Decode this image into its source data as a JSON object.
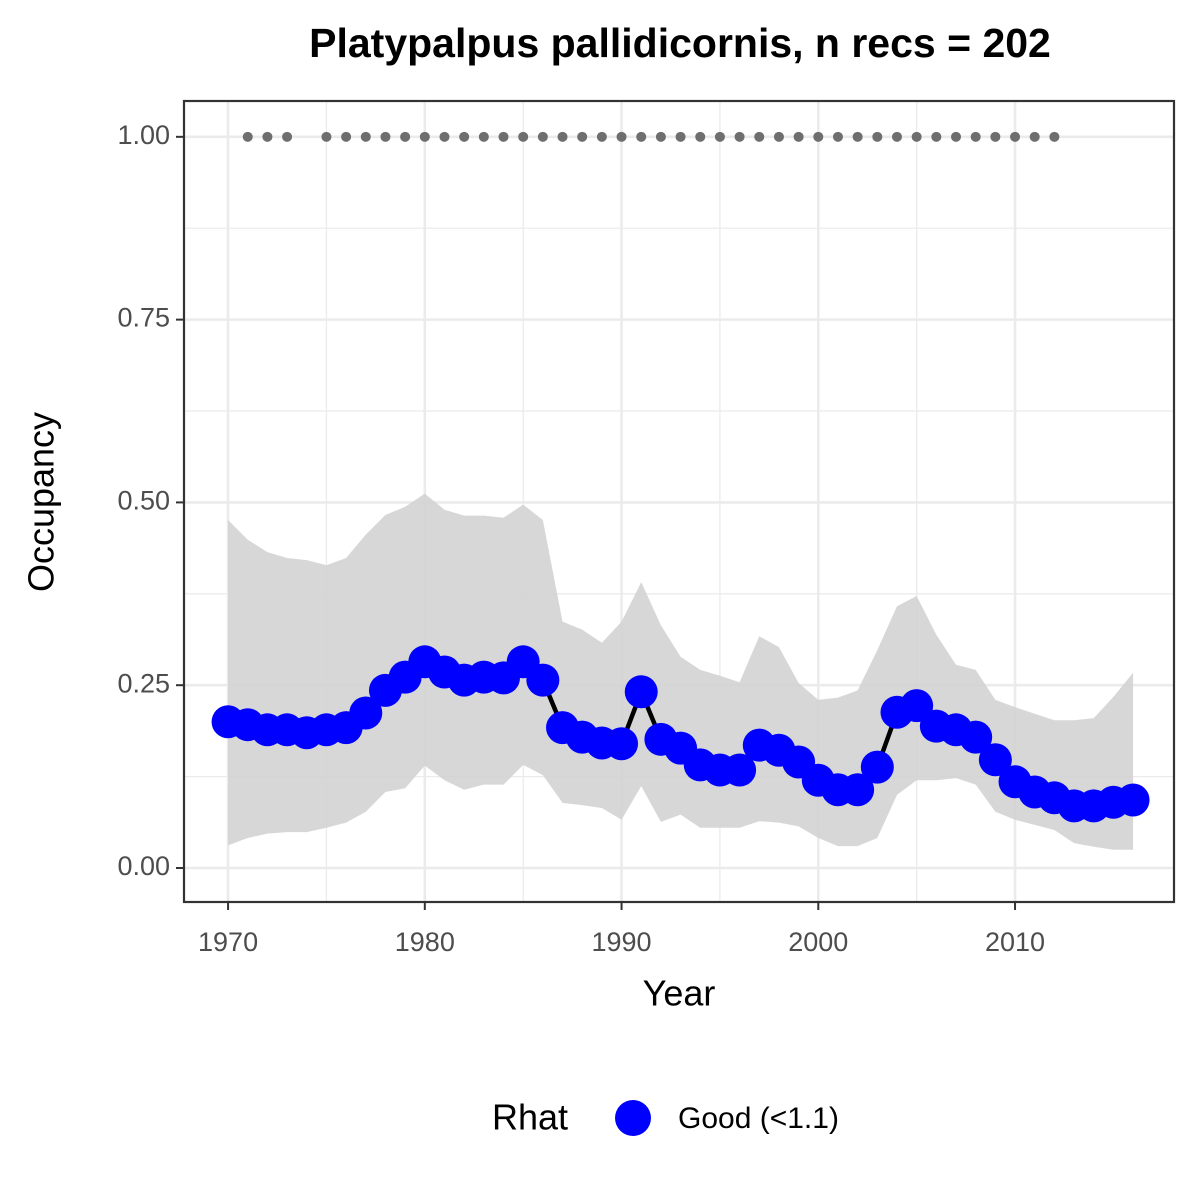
{
  "chart_data": {
    "type": "line",
    "title": "Platypalpus pallidicornis, n recs = 202",
    "xlabel": "Year",
    "ylabel": "Occupancy",
    "x": [
      1970,
      1971,
      1972,
      1973,
      1974,
      1975,
      1976,
      1977,
      1978,
      1979,
      1980,
      1981,
      1982,
      1983,
      1984,
      1985,
      1986,
      1987,
      1988,
      1989,
      1990,
      1991,
      1992,
      1993,
      1994,
      1995,
      1996,
      1997,
      1998,
      1999,
      2000,
      2001,
      2002,
      2003,
      2004,
      2005,
      2006,
      2007,
      2008,
      2009,
      2010,
      2011,
      2012,
      2013,
      2014,
      2015,
      2016
    ],
    "series": [
      {
        "name": "Good (<1.1)",
        "color": "#0000ff",
        "line_color": "#000000",
        "values": [
          0.2,
          0.196,
          0.189,
          0.189,
          0.185,
          0.189,
          0.192,
          0.212,
          0.243,
          0.261,
          0.282,
          0.268,
          0.257,
          0.261,
          0.26,
          0.282,
          0.257,
          0.192,
          0.179,
          0.171,
          0.17,
          0.241,
          0.176,
          0.164,
          0.141,
          0.134,
          0.134,
          0.168,
          0.161,
          0.145,
          0.12,
          0.107,
          0.107,
          0.138,
          0.213,
          0.222,
          0.194,
          0.189,
          0.179,
          0.148,
          0.118,
          0.104,
          0.096,
          0.085,
          0.085,
          0.09,
          0.093
        ]
      }
    ],
    "ribbon": {
      "color": "#d3d3d3",
      "upper": [
        0.476,
        0.449,
        0.432,
        0.424,
        0.421,
        0.414,
        0.424,
        0.456,
        0.483,
        0.494,
        0.512,
        0.49,
        0.482,
        0.482,
        0.479,
        0.497,
        0.476,
        0.337,
        0.326,
        0.308,
        0.337,
        0.391,
        0.332,
        0.289,
        0.271,
        0.263,
        0.254,
        0.317,
        0.302,
        0.253,
        0.23,
        0.233,
        0.243,
        0.298,
        0.358,
        0.372,
        0.319,
        0.278,
        0.271,
        0.23,
        0.22,
        0.211,
        0.202,
        0.202,
        0.205,
        0.234,
        0.267
      ],
      "lower": [
        0.031,
        0.041,
        0.047,
        0.049,
        0.049,
        0.055,
        0.062,
        0.077,
        0.104,
        0.109,
        0.14,
        0.12,
        0.107,
        0.114,
        0.114,
        0.141,
        0.127,
        0.089,
        0.086,
        0.082,
        0.066,
        0.112,
        0.063,
        0.073,
        0.055,
        0.055,
        0.055,
        0.064,
        0.062,
        0.057,
        0.041,
        0.03,
        0.03,
        0.041,
        0.1,
        0.12,
        0.12,
        0.123,
        0.114,
        0.077,
        0.066,
        0.059,
        0.052,
        0.034,
        0.029,
        0.025,
        0.025
      ]
    },
    "records": {
      "color": "#6e6e6e",
      "x": [
        1971,
        1972,
        1973,
        1975,
        1976,
        1977,
        1978,
        1979,
        1980,
        1981,
        1982,
        1983,
        1984,
        1985,
        1986,
        1987,
        1988,
        1989,
        1990,
        1991,
        1992,
        1993,
        1994,
        1995,
        1996,
        1997,
        1998,
        1999,
        2000,
        2001,
        2002,
        2003,
        2004,
        2005,
        2006,
        2007,
        2008,
        2009,
        2010,
        2011,
        2012
      ],
      "values": [
        1,
        1,
        1,
        1,
        1,
        1,
        1,
        1,
        1,
        1,
        1,
        1,
        1,
        1,
        1,
        1,
        1,
        1,
        1,
        1,
        1,
        1,
        1,
        1,
        1,
        1,
        1,
        1,
        1,
        1,
        1,
        1,
        1,
        1,
        1,
        1,
        1,
        1,
        1,
        1,
        1
      ]
    },
    "legend_title": "Rhat",
    "xlim": [
      1967.76,
      2018.08
    ],
    "ylim": [
      -0.0465,
      1.049
    ],
    "xticks": [
      1970,
      1980,
      1990,
      2000,
      2010
    ],
    "yticks": [
      {
        "value": 0,
        "label": "0.00"
      },
      {
        "value": 0.25,
        "label": "0.25"
      },
      {
        "value": 0.5,
        "label": "0.50"
      },
      {
        "value": 0.75,
        "label": "0.75"
      },
      {
        "value": 1,
        "label": "1.00"
      }
    ],
    "grid": true
  }
}
